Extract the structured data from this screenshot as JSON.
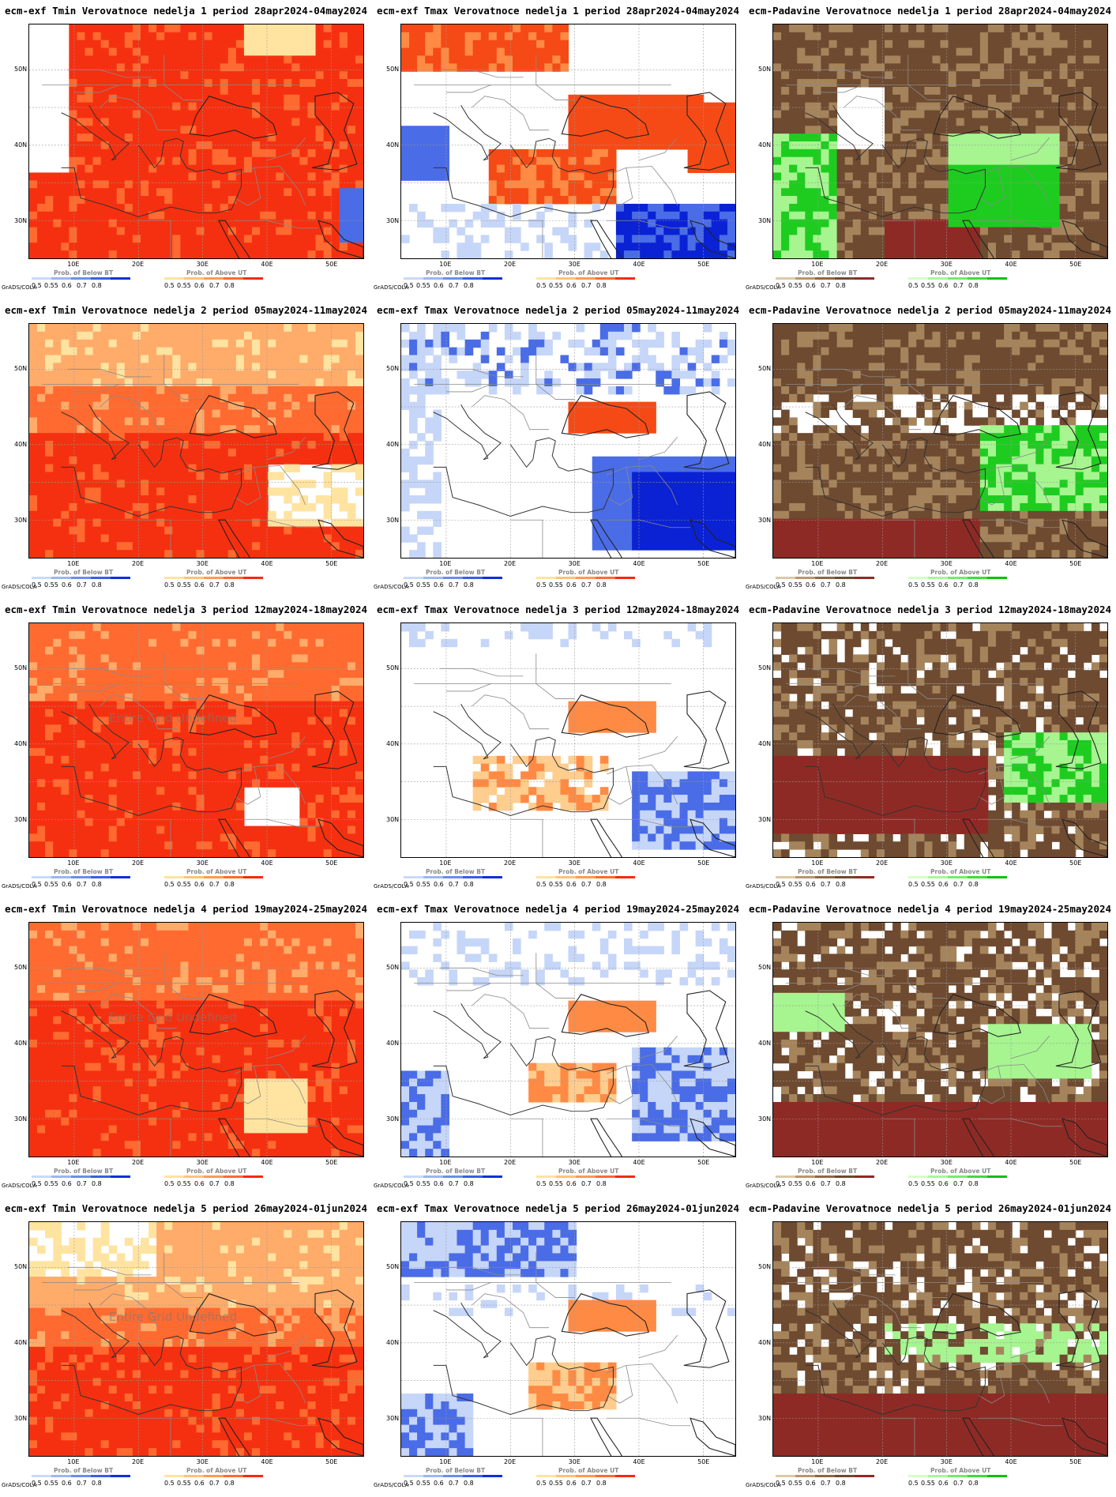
{
  "page": {
    "grads_label": "GrADS/COLA",
    "lat_labels": [
      "50N",
      "40N",
      "30N"
    ],
    "lon_labels": [
      "10E",
      "20E",
      "30E",
      "40E",
      "50E"
    ],
    "undefined_note": "Entire Grid Undefined"
  },
  "legends": {
    "temp_below": {
      "title": "Prob. of Below BT",
      "ticks": [
        "0.5",
        "0.55",
        "0.6",
        "0.7",
        "0.8"
      ],
      "colors": [
        "#c9daf8",
        "#9cb6f2",
        "#6a8eea",
        "#3a5ee4",
        "#0f2fd8"
      ]
    },
    "temp_above": {
      "title": "Prob. of Above UT",
      "ticks": [
        "0.5",
        "0.55",
        "0.6",
        "0.7",
        "0.8"
      ],
      "colors": [
        "#ffe3a0",
        "#ffc278",
        "#ff9a52",
        "#ff6a30",
        "#f52a10"
      ]
    },
    "precip_below": {
      "title": "Prob. of Below BT",
      "ticks": [
        "0.5",
        "0.55",
        "0.6",
        "0.7",
        "0.8"
      ],
      "colors": [
        "#dcc9a6",
        "#b8976b",
        "#8f6744",
        "#6e4a30",
        "#8e2a25"
      ]
    },
    "precip_above": {
      "title": "Prob. of Above UT",
      "ticks": [
        "0.5",
        "0.55",
        "0.6",
        "0.7",
        "0.8"
      ],
      "colors": [
        "#d6ffc6",
        "#a8f79a",
        "#72ec6a",
        "#40dc3a",
        "#10c010"
      ]
    }
  },
  "colors": {
    "tmin_warm": "#f53010",
    "tmin_mid": "#ff6a30",
    "tmin_light": "#ffab6a",
    "tmin_pale": "#ffe3a0",
    "tmax_warm": "#f54a16",
    "tmax_orange": "#ff8a44",
    "tmax_pale": "#ffcd8e",
    "cold_dark": "#0a22d4",
    "cold_mid": "#4a6ce6",
    "cold_light": "#c6d6f8",
    "dry_brown": "#6e4a30",
    "dry_light": "#a5845c",
    "dry_red": "#8e2a25",
    "wet_green": "#1ecc20",
    "wet_light": "#a6f590"
  },
  "panels": [
    {
      "title": "ecm-exf Tmin Verovatnoce nedelja 1 period 28apr2024-04may2024",
      "kind": "tmin",
      "variant": 1
    },
    {
      "title": "ecm-exf Tmax Verovatnoce nedelja 1 period 28apr2024-04may2024",
      "kind": "tmax",
      "variant": 1
    },
    {
      "title": "ecm-Padavine Verovatnoce nedelja 1 period 28apr2024-04may2024",
      "kind": "precip",
      "variant": 1
    },
    {
      "title": "ecm-exf Tmin Verovatnoce nedelja 2 period 05may2024-11may2024",
      "kind": "tmin",
      "variant": 2
    },
    {
      "title": "ecm-exf Tmax Verovatnoce nedelja 2 period 05may2024-11may2024",
      "kind": "tmax",
      "variant": 2
    },
    {
      "title": "ecm-Padavine Verovatnoce nedelja 2 period 05may2024-11may2024",
      "kind": "precip",
      "variant": 2
    },
    {
      "title": "ecm-exf Tmin Verovatnoce nedelja 3 period 12may2024-18may2024",
      "kind": "tmin",
      "variant": 3,
      "undefined": true
    },
    {
      "title": "ecm-exf Tmax Verovatnoce nedelja 3 period 12may2024-18may2024",
      "kind": "tmax",
      "variant": 3
    },
    {
      "title": "ecm-Padavine Verovatnoce nedelja 3 period 12may2024-18may2024",
      "kind": "precip",
      "variant": 3
    },
    {
      "title": "ecm-exf Tmin Verovatnoce nedelja 4 period 19may2024-25may2024",
      "kind": "tmin",
      "variant": 4,
      "undefined": true
    },
    {
      "title": "ecm-exf Tmax Verovatnoce nedelja 4 period 19may2024-25may2024",
      "kind": "tmax",
      "variant": 4
    },
    {
      "title": "ecm-Padavine Verovatnoce nedelja 4 period 19may2024-25may2024",
      "kind": "precip",
      "variant": 4
    },
    {
      "title": "ecm-exf Tmin Verovatnoce nedelja 5 period 26may2024-01jun2024",
      "kind": "tmin",
      "variant": 5,
      "undefined": true
    },
    {
      "title": "ecm-exf Tmax Verovatnoce nedelja 5 period 26may2024-01jun2024",
      "kind": "tmax",
      "variant": 5
    },
    {
      "title": "ecm-Padavine Verovatnoce nedelja 5 period 26may2024-01jun2024",
      "kind": "precip",
      "variant": 5
    }
  ]
}
